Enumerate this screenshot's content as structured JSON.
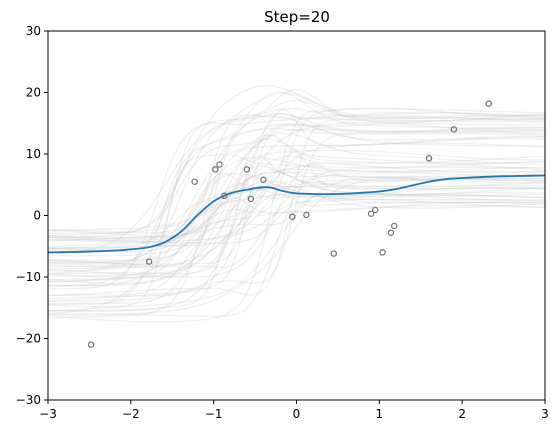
{
  "chart_data": {
    "type": "line",
    "title": "Step=20",
    "xlabel": "",
    "ylabel": "",
    "xlim": [
      -3,
      3
    ],
    "ylim": [
      -30,
      30
    ],
    "xticks": [
      -3,
      -2,
      -1,
      0,
      1,
      2,
      3
    ],
    "xtick_labels": [
      "−3",
      "−2",
      "−1",
      "0",
      "1",
      "2",
      "3"
    ],
    "yticks": [
      -30,
      -20,
      -10,
      0,
      10,
      20,
      30
    ],
    "ytick_labels": [
      "−30",
      "−20",
      "−10",
      "0",
      "10",
      "20",
      "30"
    ],
    "grid": false,
    "legend": "none",
    "colors": {
      "mean_line": "#1f77b4",
      "samples": "#bbbbbb",
      "points_edge": "#777777"
    },
    "mean_curve": {
      "x": [
        -3.0,
        -2.6,
        -2.2,
        -2.0,
        -1.8,
        -1.6,
        -1.4,
        -1.2,
        -1.0,
        -0.8,
        -0.6,
        -0.4,
        -0.3,
        -0.2,
        -0.1,
        0.0,
        0.2,
        0.5,
        0.8,
        1.0,
        1.2,
        1.4,
        1.6,
        1.8,
        2.0,
        2.3,
        2.6,
        3.0
      ],
      "y": [
        -6.0,
        -5.9,
        -5.7,
        -5.5,
        -5.2,
        -4.4,
        -2.7,
        0.0,
        2.3,
        3.6,
        4.2,
        4.6,
        4.5,
        4.1,
        3.8,
        3.6,
        3.5,
        3.5,
        3.7,
        3.9,
        4.3,
        4.9,
        5.5,
        5.9,
        6.1,
        6.3,
        6.4,
        6.5
      ]
    },
    "observations": {
      "x": [
        -2.48,
        -1.78,
        -1.23,
        -0.98,
        -0.93,
        -0.87,
        -0.6,
        -0.55,
        -0.4,
        -0.05,
        0.12,
        0.45,
        0.9,
        0.95,
        1.04,
        1.14,
        1.18,
        1.6,
        1.9,
        2.32
      ],
      "y": [
        -21.0,
        -7.5,
        5.5,
        7.5,
        8.3,
        3.2,
        7.5,
        2.7,
        5.8,
        -0.2,
        0.1,
        -6.2,
        0.3,
        0.9,
        -6.0,
        -2.8,
        -1.7,
        9.3,
        14.0,
        18.2
      ]
    },
    "posterior_samples": {
      "count": 60,
      "seed": 20
    }
  }
}
